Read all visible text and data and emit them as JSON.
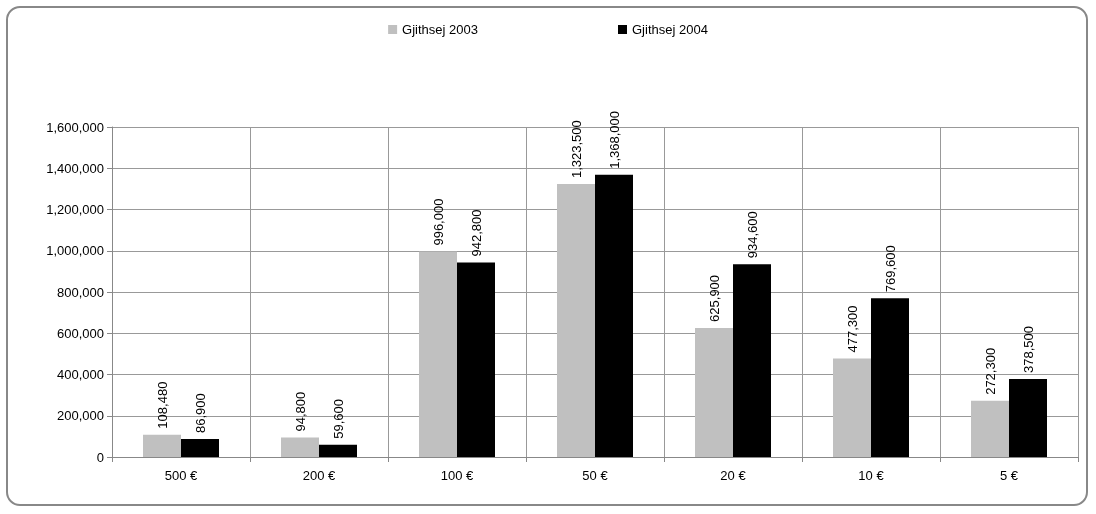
{
  "chart_data": {
    "type": "bar",
    "categories": [
      "500 €",
      "200 €",
      "100 €",
      "50 €",
      "20 €",
      "10 €",
      "5 €"
    ],
    "series": [
      {
        "name": "Gjithsej 2003",
        "color": "#c0c0c0",
        "values": [
          108480,
          94800,
          996000,
          1323500,
          625900,
          477300,
          272300
        ],
        "value_labels": [
          "108,480",
          "94,800",
          "996,000",
          "1,323,500",
          "625,900",
          "477,300",
          "272,300"
        ]
      },
      {
        "name": "Gjithsej 2004",
        "color": "#000000",
        "values": [
          86900,
          59600,
          942800,
          1368000,
          934600,
          769600,
          378500
        ],
        "value_labels": [
          "86,900",
          "59,600",
          "942,800",
          "1,368,000",
          "934,600",
          "769,600",
          "378,500"
        ]
      }
    ],
    "ylim": [
      0,
      1600000
    ],
    "yticks": [
      0,
      {
        "value": 200000,
        "label": "200,000"
      },
      {
        "value": 400000,
        "label": "400,000"
      },
      {
        "value": 600000,
        "label": "600,000"
      },
      {
        "value": 800000,
        "label": "800,000"
      },
      {
        "value": 1000000,
        "label": "1,000,000"
      },
      {
        "value": 1200000,
        "label": "1,200,000"
      },
      {
        "value": 1400000,
        "label": "1,400,000"
      },
      {
        "value": 1600000,
        "label": "1,600,000"
      }
    ],
    "grid": true,
    "legend": "top"
  }
}
